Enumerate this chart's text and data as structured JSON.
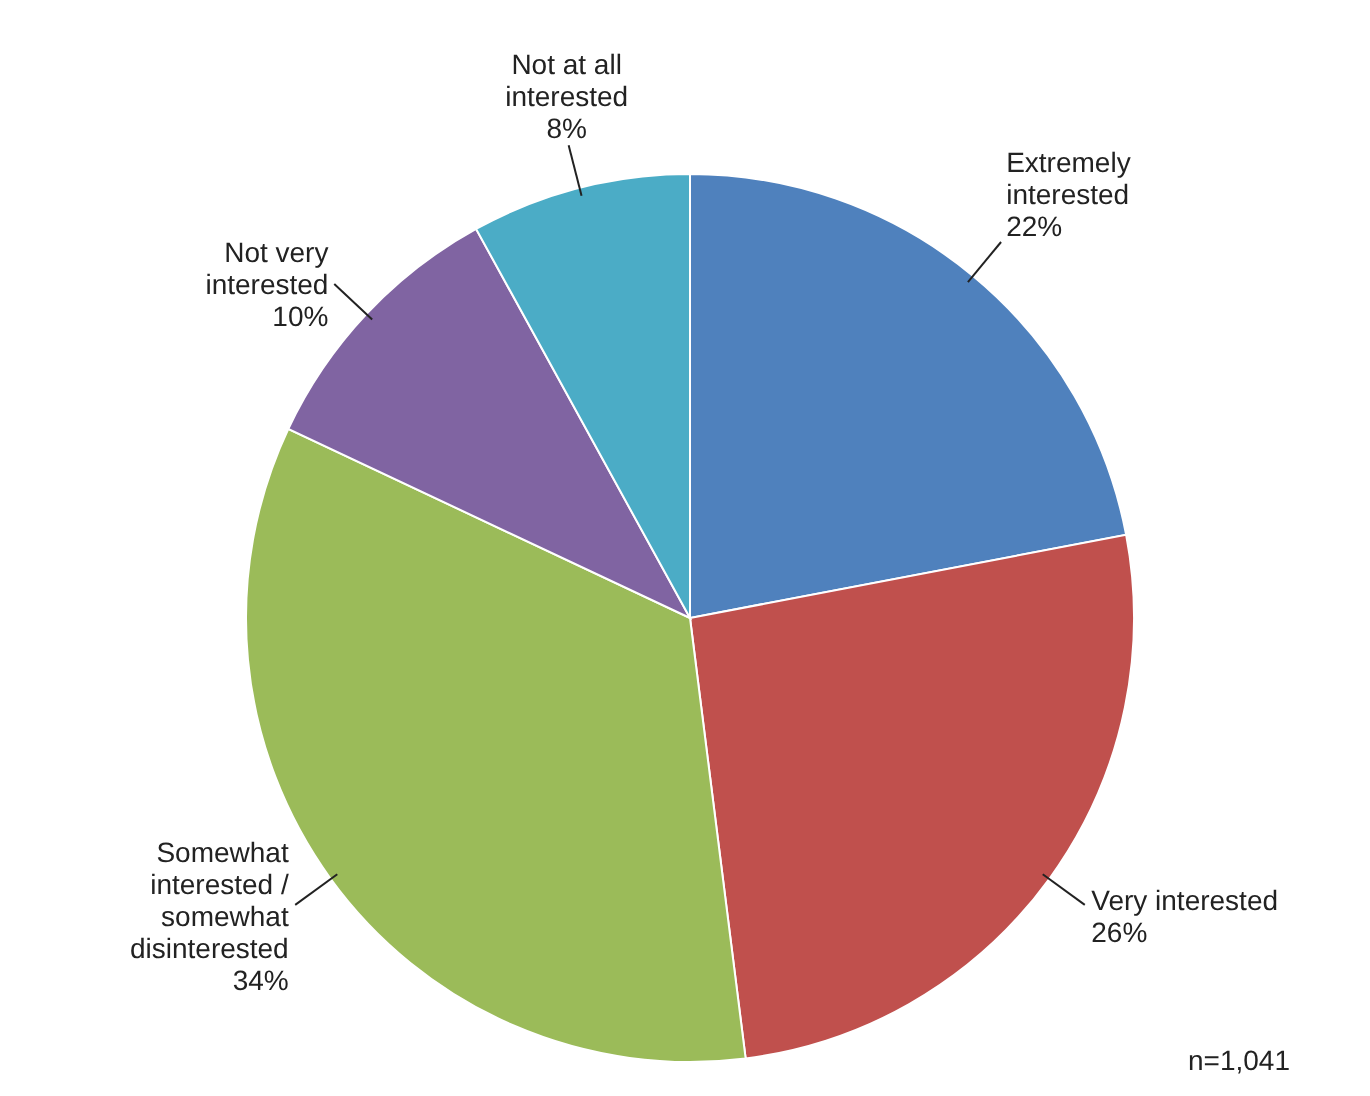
{
  "chart_data": {
    "type": "pie",
    "categories": [
      "Extremely interested",
      "Very interested",
      "Somewhat interested / somewhat disinterested",
      "Not very interested",
      "Not at all interested"
    ],
    "values": [
      22,
      26,
      34,
      10,
      8
    ],
    "value_labels": [
      "22%",
      "26%",
      "34%",
      "10%",
      "8%"
    ],
    "colors": [
      "#4f81bd",
      "#c0504d",
      "#9bbb59",
      "#8064a2",
      "#4bacc6"
    ],
    "annotations": [
      "n=1,041"
    ]
  }
}
